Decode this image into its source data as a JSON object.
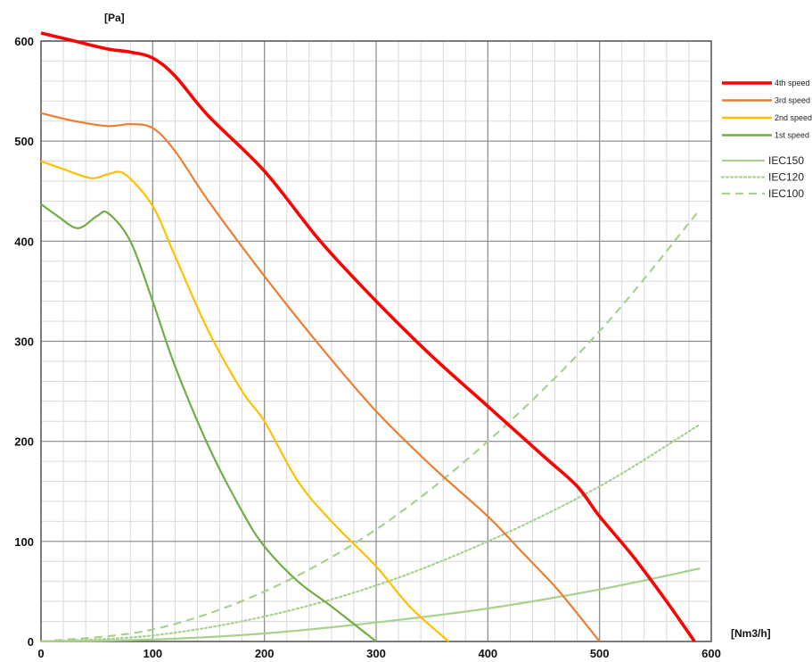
{
  "chart_data": {
    "type": "line",
    "xlabel": "[Nm3/h]",
    "ylabel": "[Pa]",
    "xlim": [
      0,
      600
    ],
    "ylim": [
      0,
      600
    ],
    "x_ticks": [
      0,
      100,
      200,
      300,
      400,
      500,
      600
    ],
    "y_ticks": [
      0,
      100,
      200,
      300,
      400,
      500,
      600
    ],
    "x_minor_step": 20,
    "y_minor_step": 20,
    "grid": true,
    "legend_position": "right",
    "series": [
      {
        "name": "4th speed",
        "color": "#ff0000",
        "style": "solid",
        "weight": "thick",
        "x": [
          0,
          30,
          60,
          80,
          100,
          120,
          150,
          200,
          250,
          300,
          350,
          400,
          450,
          480,
          500,
          530,
          560,
          585
        ],
        "y": [
          608,
          600,
          592,
          589,
          583,
          565,
          525,
          470,
          400,
          340,
          285,
          235,
          185,
          155,
          125,
          85,
          40,
          0
        ]
      },
      {
        "name": "3rd speed",
        "color": "#ed7d31",
        "style": "solid",
        "weight": "medium",
        "x": [
          0,
          30,
          60,
          80,
          100,
          120,
          150,
          200,
          250,
          300,
          350,
          400,
          430,
          460,
          480,
          500
        ],
        "y": [
          528,
          520,
          515,
          517,
          513,
          490,
          440,
          365,
          295,
          230,
          175,
          125,
          90,
          55,
          28,
          0
        ]
      },
      {
        "name": "2nd speed",
        "color": "#ffc000",
        "style": "solid",
        "weight": "medium",
        "x": [
          0,
          20,
          45,
          60,
          75,
          100,
          120,
          150,
          180,
          200,
          230,
          260,
          300,
          330,
          365
        ],
        "y": [
          480,
          472,
          463,
          467,
          467,
          435,
          385,
          310,
          250,
          220,
          160,
          120,
          75,
          35,
          0
        ]
      },
      {
        "name": "1st speed",
        "color": "#70ad47",
        "style": "solid",
        "weight": "medium",
        "x": [
          0,
          15,
          33,
          50,
          60,
          80,
          100,
          120,
          150,
          180,
          200,
          230,
          260,
          300
        ],
        "y": [
          437,
          425,
          413,
          425,
          428,
          400,
          340,
          275,
          195,
          130,
          95,
          60,
          35,
          0
        ]
      },
      {
        "name": "IEC150",
        "color": "#a9d18e",
        "style": "solid",
        "weight": "medium",
        "x": [
          0,
          100,
          200,
          300,
          400,
          500,
          590
        ],
        "y": [
          0,
          2,
          8,
          19,
          33,
          52,
          73
        ]
      },
      {
        "name": "IEC120",
        "color": "#a9d18e",
        "style": "dotted",
        "weight": "medium",
        "x": [
          0,
          100,
          200,
          300,
          400,
          500,
          590
        ],
        "y": [
          0,
          6,
          25,
          56,
          100,
          155,
          217
        ]
      },
      {
        "name": "IEC100",
        "color": "#a9d18e",
        "style": "dashed",
        "weight": "medium",
        "x": [
          0,
          100,
          200,
          300,
          400,
          500,
          590
        ],
        "y": [
          0,
          12,
          50,
          112,
          200,
          310,
          432
        ]
      }
    ]
  }
}
